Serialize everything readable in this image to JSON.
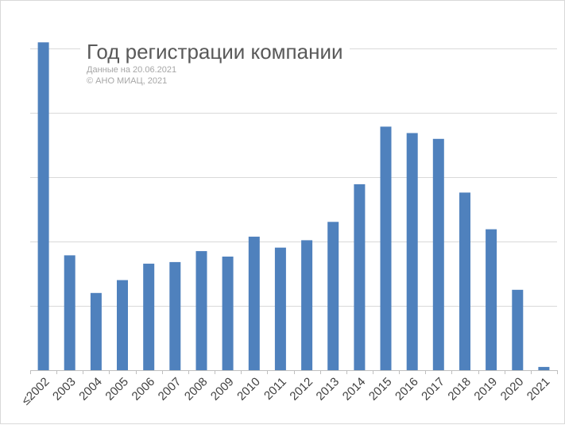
{
  "chart_data": {
    "type": "bar",
    "title": "Год регистрации компании",
    "subtitle_lines": [
      "Данные на 20.06.2021",
      "© АНО МИАЦ, 2021"
    ],
    "xlabel": "",
    "ylabel": "",
    "y_tick_labels_shown": false,
    "ylim": [
      0,
      100
    ],
    "grid": true,
    "categories": [
      "≤2002",
      "2003",
      "2004",
      "2005",
      "2006",
      "2007",
      "2008",
      "2009",
      "2010",
      "2011",
      "2012",
      "2013",
      "2014",
      "2015",
      "2016",
      "2017",
      "2018",
      "2019",
      "2020",
      "2021"
    ],
    "values": [
      101.9,
      35.7,
      24.0,
      28.0,
      33.1,
      33.6,
      37.0,
      35.3,
      41.5,
      38.1,
      40.4,
      46.1,
      57.8,
      75.7,
      73.7,
      71.9,
      55.2,
      43.8,
      25.0,
      1.0
    ],
    "colors": {
      "bar": "#4f81bd",
      "grid": "#d9d9d9",
      "axis": "#bfbfbf",
      "tick_text": "#404040"
    }
  }
}
